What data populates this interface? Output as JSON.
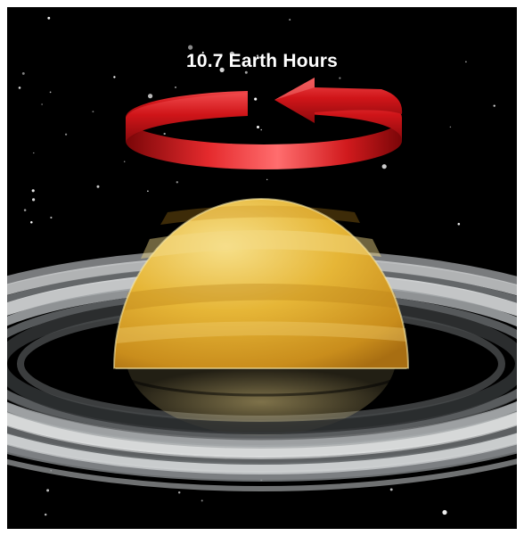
{
  "label": {
    "rotation_period": "10.7 Earth Hours"
  },
  "colors": {
    "space": "#000000",
    "arrow": "#d61a1e",
    "planet": "#e8b93a",
    "rings": "#bfc2c4",
    "frame": "#ffffff"
  },
  "icons": {
    "planet": "saturn-icon",
    "rotation_arrow": "rotation-arrow-icon"
  }
}
